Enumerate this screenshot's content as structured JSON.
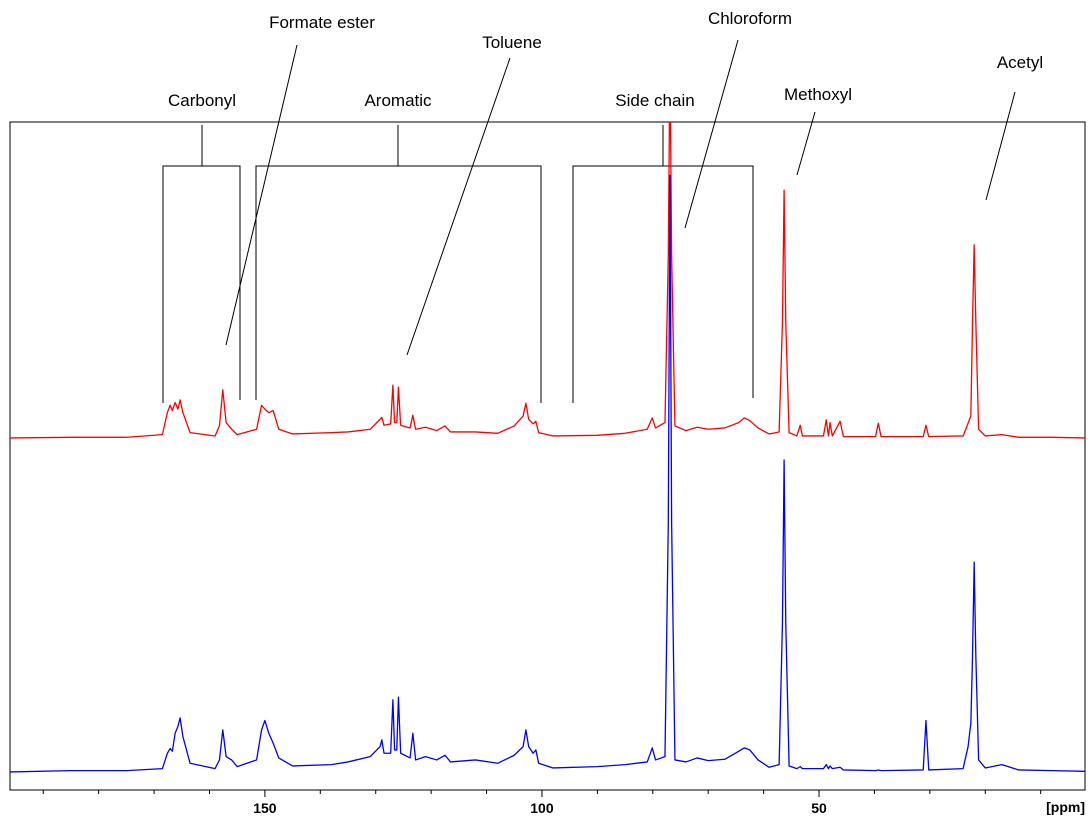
{
  "chart_data": {
    "type": "line",
    "x_label": "[ppm]",
    "xlim": [
      196,
      2
    ],
    "xticks": [
      150,
      100,
      50
    ],
    "xminor_ticks": [
      190,
      180,
      170,
      160,
      140,
      130,
      120,
      110,
      90,
      80,
      70,
      60,
      40,
      30,
      20,
      10
    ],
    "ylim": [
      0,
      100
    ],
    "annotations": [
      {
        "text": "Carbonyl"
      },
      {
        "text": "Formate ester"
      },
      {
        "text": "Aromatic"
      },
      {
        "text": "Toluene"
      },
      {
        "text": "Side chain"
      },
      {
        "text": "Chloroform"
      },
      {
        "text": "Methoxyl"
      },
      {
        "text": "Acetyl"
      }
    ],
    "x": [
      196,
      185,
      175,
      168.5,
      167.6,
      167.1,
      166.7,
      166.2,
      165.7,
      165.3,
      164.8,
      163.5,
      159,
      158.2,
      157.6,
      157.0,
      156.0,
      155.0,
      151.5,
      150.6,
      150.0,
      149.3,
      148.5,
      147.5,
      145,
      138,
      135,
      131,
      129.2,
      128.9,
      128.5,
      127.3,
      126.9,
      126.6,
      126.2,
      125.9,
      125.5,
      123.8,
      123.3,
      122.8,
      121,
      119,
      117.5,
      116.5,
      112,
      108,
      105,
      103.4,
      102.9,
      102.4,
      101.6,
      101.1,
      100.6,
      98,
      90,
      85,
      81,
      80.1,
      79.5,
      77.8,
      77.2,
      76.9,
      76.6,
      76.0,
      74,
      72,
      70,
      67,
      64.5,
      63.5,
      62.5,
      61,
      59,
      57.2,
      56.6,
      56.3,
      56.0,
      55.4,
      54,
      53.4,
      53.0,
      49.2,
      48.7,
      48.3,
      48.0,
      47.6,
      46.2,
      45.6,
      39.8,
      39.3,
      38.8,
      31.2,
      30.7,
      30.2,
      24,
      23.1,
      22.6,
      22.3,
      22.0,
      21.7,
      21.2,
      20,
      17,
      14,
      8,
      2
    ],
    "series": [
      {
        "color": "#ff0000",
        "values": [
          52.7,
          52.8,
          52.8,
          53.2,
          56.5,
          57.6,
          56.8,
          58.0,
          57.0,
          58.4,
          56.5,
          53.5,
          53.0,
          54.5,
          59.9,
          55.0,
          54.0,
          53.2,
          54.0,
          57.6,
          57.0,
          56.5,
          56.8,
          54.0,
          53.3,
          53.5,
          53.6,
          54.0,
          55.5,
          55.8,
          54.6,
          54.8,
          60.6,
          55.0,
          55.0,
          60.3,
          54.6,
          54.2,
          56.1,
          54.0,
          54.3,
          53.8,
          54.5,
          53.6,
          53.6,
          53.4,
          54.5,
          56.0,
          57.9,
          55.5,
          54.8,
          55.2,
          53.5,
          53.0,
          53.1,
          53.4,
          54.0,
          55.7,
          54.2,
          55.0,
          80,
          110,
          80,
          54.5,
          53.8,
          54.3,
          54.0,
          54.2,
          55.0,
          55.7,
          55.3,
          54.2,
          53.3,
          53.6,
          70,
          89.8,
          70,
          53.5,
          53.0,
          54.6,
          53.0,
          53.0,
          55.4,
          53.0,
          55.0,
          53.0,
          55.2,
          52.9,
          52.9,
          54.9,
          52.9,
          52.9,
          54.6,
          52.9,
          53.0,
          54.9,
          56.0,
          70,
          81.6,
          70,
          54.0,
          53.0,
          53.2,
          52.8,
          52.8,
          52.7
        ]
      },
      {
        "color": "#0000ff",
        "values": [
          2.7,
          2.9,
          2.9,
          3.2,
          5.5,
          6.2,
          5.8,
          8.5,
          9.5,
          10.8,
          8.0,
          4.0,
          3.2,
          4.5,
          9.0,
          5.0,
          4.5,
          3.5,
          4.5,
          9.0,
          10.4,
          8.5,
          7.0,
          4.8,
          3.6,
          3.8,
          4.2,
          5.0,
          6.5,
          7.5,
          5.5,
          5.5,
          13.5,
          6.0,
          6.0,
          13.9,
          5.5,
          4.8,
          8.5,
          4.5,
          5.0,
          4.5,
          5.2,
          4.2,
          4.5,
          4.0,
          5.2,
          6.5,
          9.0,
          6.5,
          5.5,
          6.0,
          4.0,
          3.3,
          3.5,
          3.8,
          4.2,
          6.3,
          4.5,
          5.0,
          40,
          92,
          40,
          4.5,
          4.2,
          4.8,
          4.4,
          4.6,
          5.8,
          6.3,
          6.0,
          4.5,
          3.4,
          3.8,
          25,
          49.4,
          25,
          3.6,
          3.2,
          3.5,
          3.2,
          3.2,
          3.8,
          3.2,
          3.6,
          3.2,
          3.4,
          3.0,
          2.9,
          3.0,
          2.9,
          3.0,
          10.4,
          3.0,
          3.2,
          6.5,
          10,
          20,
          34.1,
          20,
          4.5,
          3.3,
          3.8,
          3.0,
          2.9,
          2.8
        ]
      }
    ]
  }
}
